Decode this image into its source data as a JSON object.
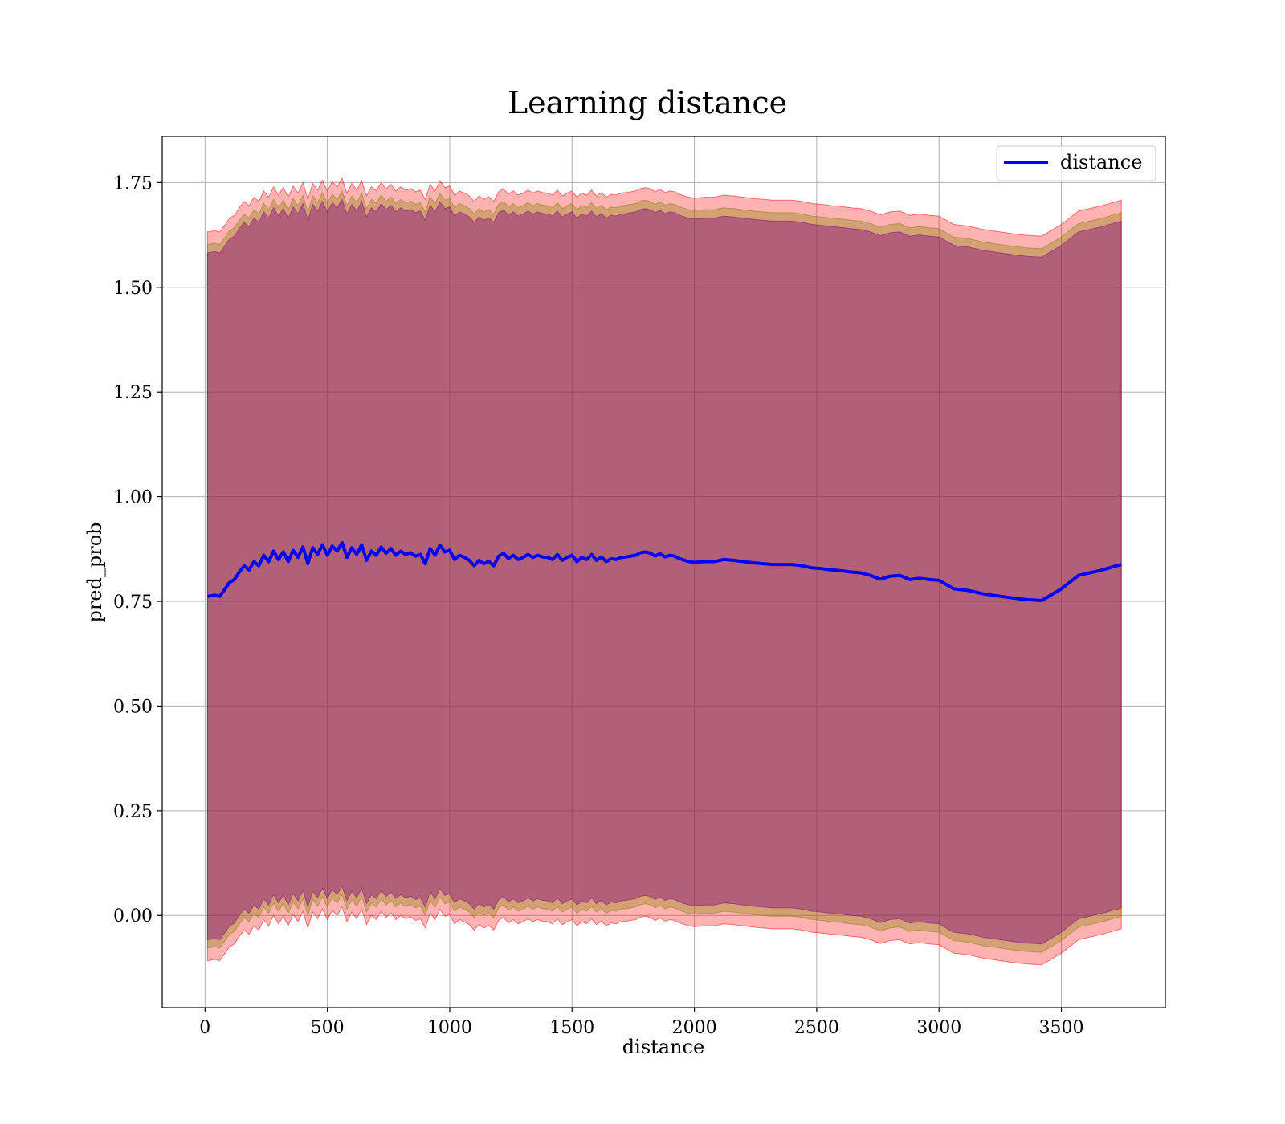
{
  "chart_data": {
    "type": "line",
    "title": "Learning distance",
    "xlabel": "distance",
    "ylabel": "pred_prob",
    "xlim": [
      -175,
      3925
    ],
    "ylim": [
      -0.22,
      1.86
    ],
    "grid": true,
    "legend_placement": "top-right",
    "x_ticks": [
      0,
      500,
      1000,
      1500,
      2000,
      2500,
      3000,
      3500
    ],
    "x_tick_labels": [
      "0",
      "500",
      "1000",
      "1500",
      "2000",
      "2500",
      "3000",
      "3500"
    ],
    "y_ticks": [
      0.0,
      0.25,
      0.5,
      0.75,
      1.0,
      1.25,
      1.5,
      1.75
    ],
    "y_tick_labels": [
      "0.00",
      "0.25",
      "0.50",
      "0.75",
      "1.00",
      "1.25",
      "1.50",
      "1.75"
    ],
    "colors": {
      "line": "#0000ff",
      "outer_band": "#ff0000",
      "middle_band": "#808000",
      "inner_band": "#800080"
    },
    "series": [
      {
        "name": "distance",
        "x": [
          10,
          40,
          60,
          80,
          100,
          120,
          140,
          160,
          180,
          200,
          220,
          240,
          260,
          280,
          300,
          320,
          340,
          360,
          380,
          400,
          420,
          440,
          460,
          480,
          500,
          520,
          540,
          560,
          580,
          600,
          620,
          640,
          660,
          680,
          700,
          720,
          740,
          760,
          780,
          800,
          820,
          840,
          860,
          880,
          900,
          920,
          940,
          960,
          980,
          1000,
          1020,
          1040,
          1060,
          1080,
          1100,
          1120,
          1140,
          1160,
          1180,
          1200,
          1220,
          1240,
          1260,
          1280,
          1300,
          1320,
          1340,
          1360,
          1380,
          1400,
          1420,
          1440,
          1460,
          1480,
          1500,
          1520,
          1540,
          1560,
          1580,
          1600,
          1620,
          1640,
          1660,
          1680,
          1700,
          1720,
          1740,
          1760,
          1780,
          1800,
          1820,
          1840,
          1860,
          1880,
          1900,
          1920,
          1940,
          1960,
          1980,
          2000,
          2040,
          2080,
          2120,
          2160,
          2200,
          2240,
          2280,
          2320,
          2360,
          2400,
          2440,
          2480,
          2520,
          2560,
          2600,
          2640,
          2680,
          2720,
          2760,
          2800,
          2840,
          2880,
          2920,
          2960,
          3000,
          3060,
          3120,
          3180,
          3240,
          3300,
          3360,
          3420,
          3500,
          3570,
          3660,
          3745
        ],
        "y": [
          0.762,
          0.765,
          0.762,
          0.778,
          0.795,
          0.802,
          0.82,
          0.835,
          0.825,
          0.845,
          0.835,
          0.86,
          0.845,
          0.87,
          0.85,
          0.868,
          0.845,
          0.872,
          0.855,
          0.88,
          0.84,
          0.878,
          0.862,
          0.885,
          0.86,
          0.882,
          0.87,
          0.89,
          0.855,
          0.878,
          0.862,
          0.885,
          0.848,
          0.87,
          0.86,
          0.88,
          0.865,
          0.876,
          0.86,
          0.87,
          0.862,
          0.866,
          0.858,
          0.862,
          0.84,
          0.876,
          0.86,
          0.884,
          0.868,
          0.872,
          0.85,
          0.86,
          0.855,
          0.848,
          0.835,
          0.848,
          0.84,
          0.846,
          0.835,
          0.858,
          0.865,
          0.852,
          0.86,
          0.85,
          0.855,
          0.862,
          0.855,
          0.86,
          0.856,
          0.855,
          0.85,
          0.862,
          0.848,
          0.855,
          0.86,
          0.845,
          0.855,
          0.85,
          0.862,
          0.848,
          0.856,
          0.845,
          0.852,
          0.85,
          0.855,
          0.856,
          0.858,
          0.86,
          0.866,
          0.868,
          0.865,
          0.858,
          0.864,
          0.856,
          0.86,
          0.858,
          0.852,
          0.848,
          0.845,
          0.843,
          0.845,
          0.845,
          0.85,
          0.848,
          0.845,
          0.842,
          0.84,
          0.838,
          0.838,
          0.838,
          0.835,
          0.83,
          0.828,
          0.825,
          0.823,
          0.82,
          0.818,
          0.812,
          0.803,
          0.81,
          0.812,
          0.802,
          0.805,
          0.802,
          0.8,
          0.78,
          0.776,
          0.768,
          0.763,
          0.758,
          0.754,
          0.752,
          0.78,
          0.812,
          0.824,
          0.838
        ]
      }
    ],
    "bands": [
      {
        "role": "outer",
        "half_width": 0.87
      },
      {
        "role": "middle",
        "half_width": 0.84
      },
      {
        "role": "inner",
        "half_width": 0.82
      }
    ],
    "legend": {
      "entries": [
        "distance"
      ]
    }
  }
}
